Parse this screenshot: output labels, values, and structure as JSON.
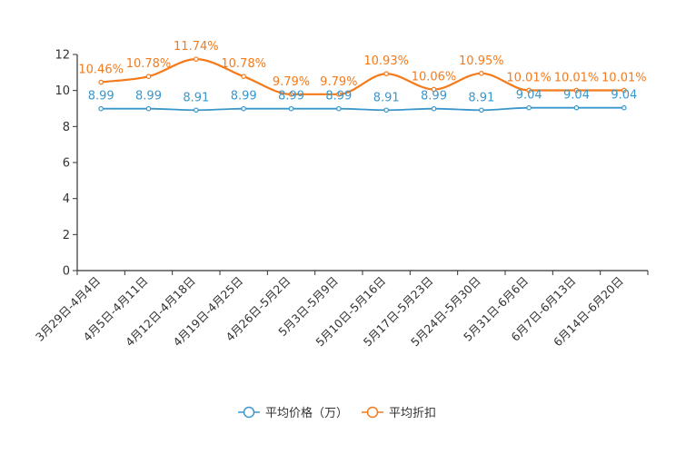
{
  "chart_data": {
    "type": "line",
    "title": "",
    "xlabel": "",
    "ylabel": "",
    "ylim": [
      0,
      12
    ],
    "yticks": [
      0,
      2,
      4,
      6,
      8,
      10,
      12
    ],
    "grid": false,
    "legend_position": "bottom-center",
    "categories": [
      "3月29日-4月4日",
      "4月5日-4月11日",
      "4月12日-4月18日",
      "4月19日-4月25日",
      "4月26日-5月2日",
      "5月3日-5月9日",
      "5月10日-5月16日",
      "5月17日-5月23日",
      "5月24日-5月30日",
      "5月31日-6月6日",
      "6月7日-6月13日",
      "6月14日-6月20日"
    ],
    "series": [
      {
        "name": "平均价格（万）",
        "color": "#3a97cc",
        "values": [
          8.99,
          8.99,
          8.91,
          8.99,
          8.99,
          8.99,
          8.91,
          8.99,
          8.91,
          9.04,
          9.04,
          9.04
        ],
        "labels": [
          "8.99",
          "8.99",
          "8.91",
          "8.99",
          "8.99",
          "8.99",
          "8.91",
          "8.99",
          "8.91",
          "9.04",
          "9.04",
          "9.04"
        ]
      },
      {
        "name": "平均折扣",
        "color": "#f57a1a",
        "values": [
          10.46,
          10.78,
          11.74,
          10.78,
          9.79,
          9.79,
          10.93,
          10.06,
          10.95,
          10.01,
          10.01,
          10.01
        ],
        "labels": [
          "10.46%",
          "10.78%",
          "11.74%",
          "10.78%",
          "9.79%",
          "9.79%",
          "10.93%",
          "10.06%",
          "10.95%",
          "10.01%",
          "10.01%",
          "10.01%"
        ]
      }
    ]
  }
}
